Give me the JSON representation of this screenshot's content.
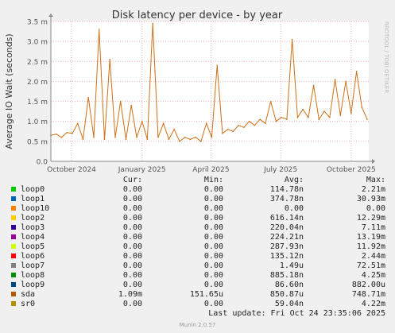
{
  "chart_data": {
    "type": "line",
    "title": "Disk latency per device - by year",
    "ylabel": "Average IO Wait (seconds)",
    "watermark": "RRDTOOL / TOBI OETIKER",
    "ylim": [
      0,
      0.0035
    ],
    "yticks": [
      {
        "value": 0,
        "label": "0.0"
      },
      {
        "value": 0.0005,
        "label": "0.5 m"
      },
      {
        "value": 0.001,
        "label": "1.0 m"
      },
      {
        "value": 0.0015,
        "label": "1.5 m"
      },
      {
        "value": 0.002,
        "label": "2.0 m"
      },
      {
        "value": 0.0025,
        "label": "2.5 m"
      },
      {
        "value": 0.003,
        "label": "3.0 m"
      },
      {
        "value": 0.0035,
        "label": "3.5 m"
      }
    ],
    "xlim": [
      "2024-09-04",
      "2025-10-24"
    ],
    "xticks": [
      {
        "date": "2024-10-01",
        "label": "October 2024"
      },
      {
        "date": "2025-01-01",
        "label": "January 2025"
      },
      {
        "date": "2025-04-01",
        "label": "April 2025"
      },
      {
        "date": "2025-07-01",
        "label": "July 2025"
      },
      {
        "date": "2025-10-01",
        "label": "October 2025"
      }
    ],
    "series": [
      {
        "name": "sda",
        "color": "#cc7016",
        "x": [
          "2024-09-04",
          "2024-09-11",
          "2024-09-18",
          "2024-09-25",
          "2024-10-02",
          "2024-10-09",
          "2024-10-16",
          "2024-10-23",
          "2024-10-30",
          "2024-11-06",
          "2024-11-13",
          "2024-11-20",
          "2024-11-27",
          "2024-12-04",
          "2024-12-11",
          "2024-12-18",
          "2024-12-25",
          "2025-01-01",
          "2025-01-08",
          "2025-01-15",
          "2025-01-22",
          "2025-01-29",
          "2025-02-05",
          "2025-02-12",
          "2025-02-19",
          "2025-02-26",
          "2025-03-05",
          "2025-03-12",
          "2025-03-19",
          "2025-03-26",
          "2025-04-02",
          "2025-04-09",
          "2025-04-16",
          "2025-04-23",
          "2025-04-30",
          "2025-05-07",
          "2025-05-14",
          "2025-05-21",
          "2025-05-28",
          "2025-06-04",
          "2025-06-11",
          "2025-06-18",
          "2025-06-25",
          "2025-07-02",
          "2025-07-09",
          "2025-07-16",
          "2025-07-23",
          "2025-07-30",
          "2025-08-06",
          "2025-08-13",
          "2025-08-20",
          "2025-08-27",
          "2025-09-03",
          "2025-09-10",
          "2025-09-17",
          "2025-09-24",
          "2025-10-01",
          "2025-10-08",
          "2025-10-15",
          "2025-10-22"
        ],
        "values": [
          0.00065,
          0.00068,
          0.0006,
          0.00072,
          0.0007,
          0.00095,
          0.00055,
          0.0016,
          0.0006,
          0.0033,
          0.00055,
          0.00255,
          0.0006,
          0.0015,
          0.00055,
          0.0014,
          0.0006,
          0.001,
          0.00055,
          0.00345,
          0.0006,
          0.00095,
          0.00055,
          0.0008,
          0.0005,
          0.0006,
          0.00055,
          0.0006,
          0.0005,
          0.00095,
          0.0006,
          0.0024,
          0.0007,
          0.0008,
          0.00075,
          0.0009,
          0.00085,
          0.001,
          0.0009,
          0.00105,
          0.00095,
          0.0015,
          0.001,
          0.0011,
          0.00105,
          0.00305,
          0.0011,
          0.0013,
          0.0011,
          0.0019,
          0.00105,
          0.00125,
          0.0011,
          0.00205,
          0.00115,
          0.002,
          0.0012,
          0.00225,
          0.00135,
          0.00105
        ]
      }
    ]
  },
  "legend": {
    "headers": {
      "cur": "Cur:",
      "min": "Min:",
      "avg": "Avg:",
      "max": "Max:"
    },
    "rows": [
      {
        "name": "loop0",
        "color": "#00cc00",
        "cur": "0.00",
        "min": "0.00",
        "avg": "114.78n",
        "max": "2.21m"
      },
      {
        "name": "loop1",
        "color": "#0066b3",
        "cur": "0.00",
        "min": "0.00",
        "avg": "374.78n",
        "max": "30.93m"
      },
      {
        "name": "loop10",
        "color": "#ff8000",
        "cur": "0.00",
        "min": "0.00",
        "avg": "0.00",
        "max": "0.00"
      },
      {
        "name": "loop2",
        "color": "#ffcc00",
        "cur": "0.00",
        "min": "0.00",
        "avg": "616.14n",
        "max": "12.29m"
      },
      {
        "name": "loop3",
        "color": "#330099",
        "cur": "0.00",
        "min": "0.00",
        "avg": "220.04n",
        "max": "7.11m"
      },
      {
        "name": "loop4",
        "color": "#990099",
        "cur": "0.00",
        "min": "0.00",
        "avg": "224.21n",
        "max": "13.19m"
      },
      {
        "name": "loop5",
        "color": "#ccff00",
        "cur": "0.00",
        "min": "0.00",
        "avg": "287.93n",
        "max": "11.92m"
      },
      {
        "name": "loop6",
        "color": "#ff0000",
        "cur": "0.00",
        "min": "0.00",
        "avg": "135.12n",
        "max": "2.44m"
      },
      {
        "name": "loop7",
        "color": "#808080",
        "cur": "0.00",
        "min": "0.00",
        "avg": "1.49u",
        "max": "72.51m"
      },
      {
        "name": "loop8",
        "color": "#008f00",
        "cur": "0.00",
        "min": "0.00",
        "avg": "885.18n",
        "max": "4.25m"
      },
      {
        "name": "loop9",
        "color": "#00487d",
        "cur": "0.00",
        "min": "0.00",
        "avg": "86.60n",
        "max": "882.00u"
      },
      {
        "name": "sda",
        "color": "#b35a00",
        "cur": "1.09m",
        "min": "151.65u",
        "avg": "850.87u",
        "max": "748.71m"
      },
      {
        "name": "sr0",
        "color": "#b38f00",
        "cur": "0.00",
        "min": "0.00",
        "avg": "59.04n",
        "max": "4.22m"
      }
    ]
  },
  "last_update": "Last update: Fri Oct 24 23:35:06 2025",
  "munin_version": "Munin 2.0.57"
}
